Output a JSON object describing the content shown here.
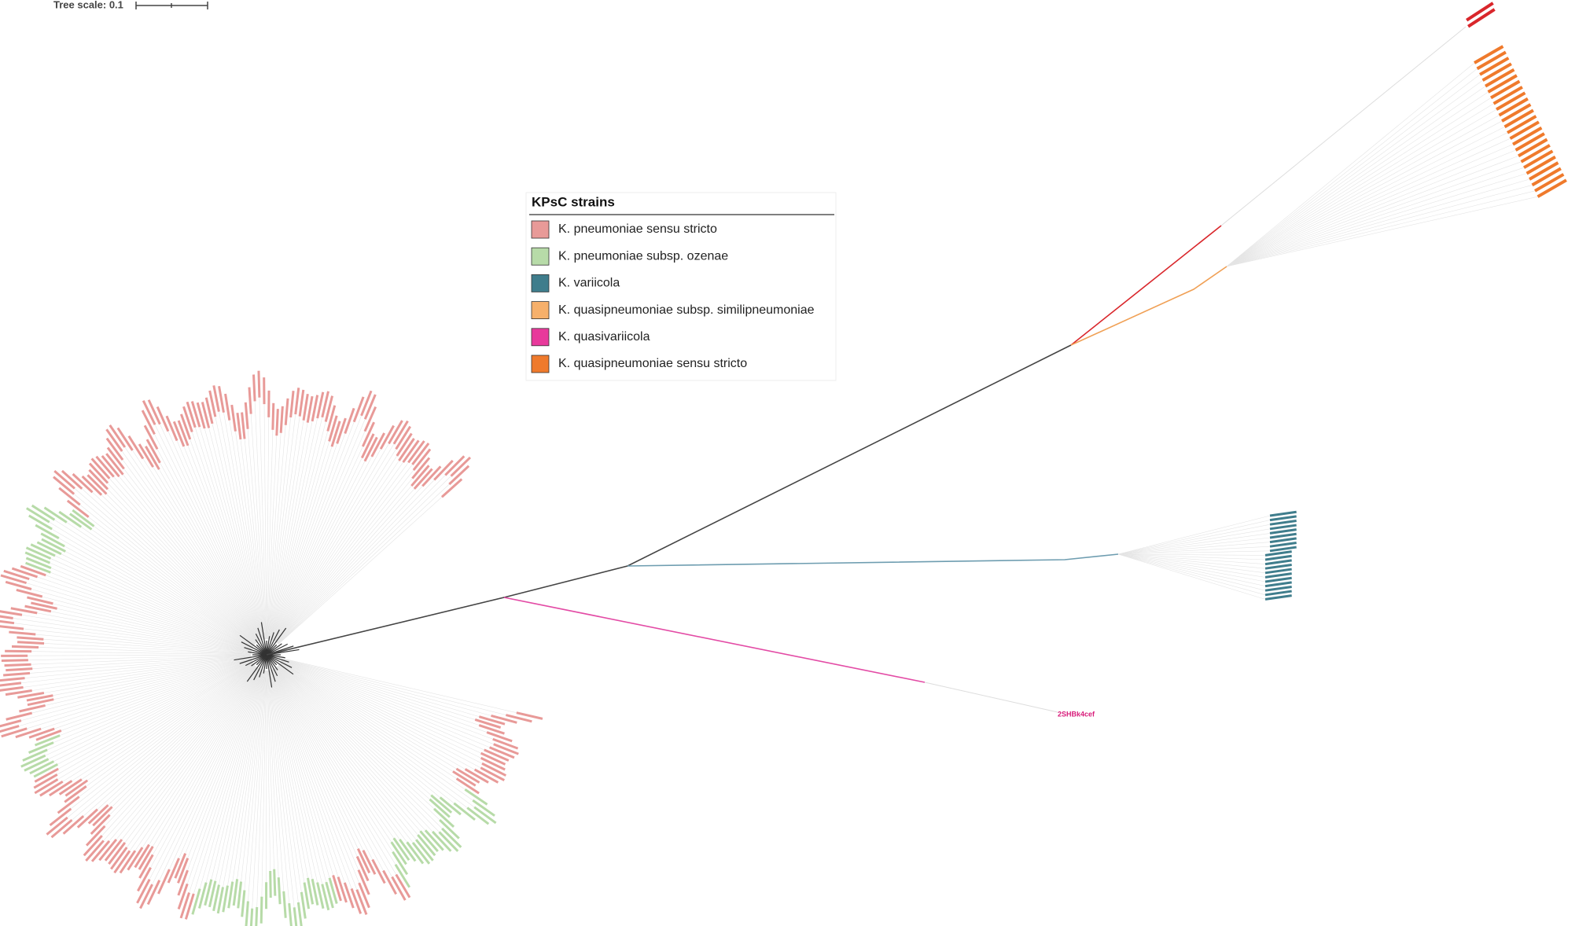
{
  "scale": {
    "label": "Tree scale: 0.1"
  },
  "legend": {
    "title": "KPsC strains",
    "items": [
      {
        "label": "K. pneumoniae sensu stricto",
        "color": "#e89a98"
      },
      {
        "label": "K. pneumoniae subsp. ozenae",
        "color": "#b7dba8"
      },
      {
        "label": "K. variicola",
        "color": "#3f7d8c"
      },
      {
        "label": "K. quasipneumoniae subsp. similipneumoniae",
        "color": "#f6b06b"
      },
      {
        "label": "K. quasivariicola",
        "color": "#e8399b"
      },
      {
        "label": "K. quasipneumoniae sensu stricto",
        "color": "#ef7a2c"
      }
    ]
  },
  "leaves": [
    {
      "label": "2SHBk4cef",
      "color": "#d81b7a"
    }
  ]
}
